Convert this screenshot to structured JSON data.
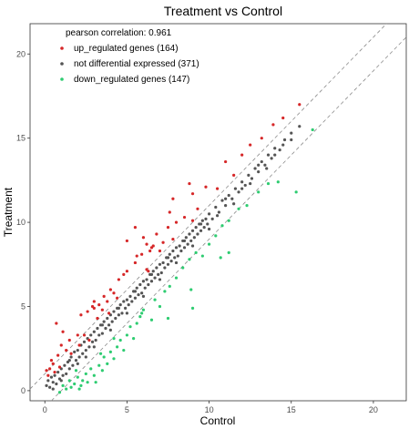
{
  "chart_data": {
    "type": "scatter",
    "title": "Treatment vs Control",
    "xlabel": "Control",
    "ylabel": "Treatment",
    "xlim": [
      -0.9,
      22
    ],
    "ylim": [
      -0.6,
      21.8
    ],
    "xticks": [
      0,
      5,
      10,
      15,
      20
    ],
    "yticks": [
      0,
      5,
      10,
      15,
      20
    ],
    "grid": false,
    "annotation": "pearson correlation: 0.961",
    "reference_lines": [
      {
        "intercept": 1,
        "slope": 1,
        "style": "dashed"
      },
      {
        "intercept": -1,
        "slope": 1,
        "style": "dashed"
      }
    ],
    "legend_position": "top-left",
    "series": [
      {
        "name": "up_regulated genes (164)",
        "color": "#d62728",
        "points": [
          [
            0.1,
            1.2
          ],
          [
            0.2,
            0.9
          ],
          [
            0.3,
            1.3
          ],
          [
            0.5,
            1.6
          ],
          [
            0.6,
            1.1
          ],
          [
            0.8,
            2.1
          ],
          [
            0.7,
            4.0
          ],
          [
            1.1,
            3.5
          ],
          [
            1.3,
            2.4
          ],
          [
            1.5,
            3.0
          ],
          [
            1.6,
            2.2
          ],
          [
            2.0,
            3.3
          ],
          [
            2.1,
            2.7
          ],
          [
            2.2,
            4.5
          ],
          [
            2.4,
            3.3
          ],
          [
            2.6,
            4.7
          ],
          [
            2.7,
            3.0
          ],
          [
            2.9,
            5.0
          ],
          [
            3.0,
            5.3
          ],
          [
            3.2,
            4.3
          ],
          [
            3.3,
            5.1
          ],
          [
            3.5,
            4.8
          ],
          [
            3.6,
            5.6
          ],
          [
            3.8,
            5.3
          ],
          [
            3.9,
            4.6
          ],
          [
            4.0,
            6.0
          ],
          [
            4.2,
            5.8
          ],
          [
            4.4,
            5.5
          ],
          [
            4.5,
            6.6
          ],
          [
            4.8,
            6.9
          ],
          [
            5.0,
            7.1
          ],
          [
            5.5,
            7.6
          ],
          [
            5.6,
            8.0
          ],
          [
            5.9,
            8.1
          ],
          [
            6.2,
            8.7
          ],
          [
            6.3,
            7.1
          ],
          [
            6.5,
            8.5
          ],
          [
            6.6,
            8.6
          ],
          [
            6.8,
            9.3
          ],
          [
            7.0,
            8.3
          ],
          [
            7.5,
            9.7
          ],
          [
            7.8,
            9.0
          ],
          [
            8.0,
            10.0
          ],
          [
            8.5,
            10.3
          ],
          [
            9.0,
            10.1
          ],
          [
            9.3,
            10.8
          ],
          [
            9.8,
            12.1
          ],
          [
            8.8,
            12.3
          ],
          [
            10.5,
            12.0
          ],
          [
            11.0,
            13.6
          ],
          [
            11.5,
            12.8
          ],
          [
            12.0,
            14.0
          ],
          [
            12.5,
            14.6
          ],
          [
            13.2,
            15.0
          ],
          [
            13.9,
            15.8
          ],
          [
            14.5,
            16.2
          ],
          [
            15.5,
            17.0
          ],
          [
            5.5,
            9.7
          ],
          [
            5.0,
            8.9
          ],
          [
            6.0,
            9.1
          ],
          [
            7.8,
            11.4
          ],
          [
            9.0,
            11.7
          ],
          [
            6.2,
            7.2
          ],
          [
            7.2,
            8.8
          ],
          [
            7.6,
            10.6
          ],
          [
            6.4,
            8.3
          ],
          [
            3.0,
            4.9
          ],
          [
            1.0,
            2.7
          ],
          [
            0.4,
            1.8
          ],
          [
            0.9,
            1.4
          ]
        ]
      },
      {
        "name": "not differential expressed (371)",
        "color": "#555555",
        "points": [
          [
            0.1,
            0.3
          ],
          [
            0.2,
            0.6
          ],
          [
            0.3,
            0.2
          ],
          [
            0.4,
            0.8
          ],
          [
            0.5,
            0.5
          ],
          [
            0.6,
            0.9
          ],
          [
            0.7,
            0.4
          ],
          [
            0.8,
            1.1
          ],
          [
            0.9,
            0.7
          ],
          [
            1.0,
            1.3
          ],
          [
            1.1,
            0.9
          ],
          [
            1.2,
            1.5
          ],
          [
            1.3,
            1.0
          ],
          [
            1.4,
            1.7
          ],
          [
            1.5,
            1.3
          ],
          [
            1.6,
            2.0
          ],
          [
            1.7,
            1.5
          ],
          [
            1.8,
            2.3
          ],
          [
            1.9,
            1.8
          ],
          [
            2.0,
            2.4
          ],
          [
            2.1,
            2.0
          ],
          [
            2.2,
            2.7
          ],
          [
            2.3,
            2.2
          ],
          [
            2.4,
            2.9
          ],
          [
            2.5,
            2.4
          ],
          [
            2.6,
            3.1
          ],
          [
            2.7,
            2.6
          ],
          [
            2.8,
            3.3
          ],
          [
            2.9,
            2.9
          ],
          [
            3.0,
            3.5
          ],
          [
            3.1,
            3.0
          ],
          [
            3.2,
            3.7
          ],
          [
            3.3,
            3.3
          ],
          [
            3.4,
            3.9
          ],
          [
            3.5,
            3.4
          ],
          [
            3.6,
            4.1
          ],
          [
            3.7,
            3.7
          ],
          [
            3.8,
            4.3
          ],
          [
            3.9,
            3.9
          ],
          [
            4.0,
            4.5
          ],
          [
            4.1,
            4.1
          ],
          [
            4.2,
            4.7
          ],
          [
            4.3,
            4.3
          ],
          [
            4.4,
            4.9
          ],
          [
            4.5,
            4.5
          ],
          [
            4.6,
            5.1
          ],
          [
            4.7,
            4.6
          ],
          [
            4.8,
            5.3
          ],
          [
            4.9,
            4.9
          ],
          [
            5.0,
            5.4
          ],
          [
            5.1,
            5.1
          ],
          [
            5.2,
            5.6
          ],
          [
            5.3,
            5.3
          ],
          [
            5.4,
            5.9
          ],
          [
            5.5,
            5.5
          ],
          [
            5.6,
            6.1
          ],
          [
            5.7,
            5.7
          ],
          [
            5.8,
            6.3
          ],
          [
            5.9,
            5.8
          ],
          [
            6.0,
            6.5
          ],
          [
            6.1,
            6.1
          ],
          [
            6.2,
            6.6
          ],
          [
            6.3,
            6.3
          ],
          [
            6.4,
            6.9
          ],
          [
            6.5,
            6.5
          ],
          [
            6.6,
            7.1
          ],
          [
            6.7,
            6.7
          ],
          [
            6.8,
            7.3
          ],
          [
            6.9,
            6.9
          ],
          [
            7.0,
            7.5
          ],
          [
            7.1,
            7.0
          ],
          [
            7.2,
            7.6
          ],
          [
            7.3,
            7.3
          ],
          [
            7.4,
            7.9
          ],
          [
            7.5,
            7.5
          ],
          [
            7.6,
            8.1
          ],
          [
            7.7,
            7.7
          ],
          [
            7.8,
            8.3
          ],
          [
            7.9,
            7.9
          ],
          [
            8.0,
            8.5
          ],
          [
            8.1,
            8.0
          ],
          [
            8.2,
            8.6
          ],
          [
            8.3,
            8.3
          ],
          [
            8.4,
            8.9
          ],
          [
            8.5,
            8.5
          ],
          [
            8.6,
            9.1
          ],
          [
            8.7,
            8.7
          ],
          [
            8.8,
            9.3
          ],
          [
            8.9,
            8.9
          ],
          [
            9.0,
            9.5
          ],
          [
            9.1,
            9.1
          ],
          [
            9.2,
            9.7
          ],
          [
            9.3,
            9.3
          ],
          [
            9.4,
            9.9
          ],
          [
            9.5,
            9.5
          ],
          [
            9.6,
            10.1
          ],
          [
            9.7,
            9.7
          ],
          [
            9.8,
            10.2
          ],
          [
            9.9,
            9.9
          ],
          [
            10.0,
            10.5
          ],
          [
            10.2,
            10.2
          ],
          [
            10.4,
            10.9
          ],
          [
            10.6,
            10.6
          ],
          [
            10.8,
            11.3
          ],
          [
            11.0,
            11.0
          ],
          [
            11.2,
            11.6
          ],
          [
            11.4,
            11.4
          ],
          [
            11.6,
            12.0
          ],
          [
            11.8,
            11.8
          ],
          [
            12.0,
            12.4
          ],
          [
            12.2,
            12.2
          ],
          [
            12.4,
            12.8
          ],
          [
            12.6,
            12.6
          ],
          [
            12.8,
            13.2
          ],
          [
            13.0,
            13.0
          ],
          [
            13.2,
            13.6
          ],
          [
            13.4,
            13.4
          ],
          [
            13.6,
            14.0
          ],
          [
            13.8,
            13.8
          ],
          [
            14.0,
            14.4
          ],
          [
            14.3,
            14.3
          ],
          [
            14.6,
            14.9
          ],
          [
            15.0,
            15.3
          ],
          [
            15.5,
            15.7
          ],
          [
            0.5,
            0.1
          ],
          [
            1.0,
            0.6
          ],
          [
            1.5,
            1.8
          ],
          [
            2.0,
            1.6
          ],
          [
            2.5,
            2.0
          ],
          [
            3.0,
            2.6
          ],
          [
            3.5,
            3.9
          ],
          [
            4.0,
            3.6
          ],
          [
            4.5,
            4.9
          ],
          [
            5.0,
            4.6
          ],
          [
            5.5,
            5.9
          ],
          [
            6.0,
            5.6
          ],
          [
            6.5,
            6.9
          ],
          [
            7.0,
            6.6
          ],
          [
            7.5,
            7.9
          ],
          [
            8.0,
            7.6
          ],
          [
            8.5,
            8.9
          ],
          [
            9.0,
            8.6
          ],
          [
            9.5,
            9.9
          ],
          [
            10.0,
            9.6
          ],
          [
            10.5,
            10.4
          ],
          [
            11.0,
            11.4
          ],
          [
            11.5,
            11.1
          ],
          [
            12.0,
            12.0
          ],
          [
            12.5,
            12.3
          ],
          [
            13.0,
            13.4
          ],
          [
            13.5,
            13.2
          ],
          [
            14.0,
            14.0
          ],
          [
            14.5,
            14.6
          ],
          [
            15.0,
            14.9
          ]
        ]
      },
      {
        "name": "down_regulated genes (147)",
        "color": "#2ecc71",
        "points": [
          [
            0.9,
            -0.1
          ],
          [
            1.1,
            0.3
          ],
          [
            1.3,
            0.1
          ],
          [
            1.5,
            0.6
          ],
          [
            1.6,
            0.2
          ],
          [
            1.8,
            0.4
          ],
          [
            2.0,
            0.8
          ],
          [
            2.2,
            0.3
          ],
          [
            2.3,
            0.6
          ],
          [
            2.5,
            1.0
          ],
          [
            2.6,
            0.5
          ],
          [
            2.8,
            1.3
          ],
          [
            3.0,
            0.9
          ],
          [
            3.1,
            0.5
          ],
          [
            3.3,
            1.5
          ],
          [
            3.5,
            1.2
          ],
          [
            3.6,
            2.0
          ],
          [
            3.8,
            1.6
          ],
          [
            4.0,
            2.3
          ],
          [
            4.2,
            1.9
          ],
          [
            4.4,
            2.6
          ],
          [
            4.6,
            3.0
          ],
          [
            4.8,
            2.4
          ],
          [
            5.0,
            3.3
          ],
          [
            5.2,
            3.8
          ],
          [
            5.4,
            3.1
          ],
          [
            5.6,
            4.0
          ],
          [
            5.8,
            4.4
          ],
          [
            6.0,
            4.8
          ],
          [
            6.5,
            4.2
          ],
          [
            6.7,
            5.4
          ],
          [
            7.0,
            5.0
          ],
          [
            7.3,
            5.9
          ],
          [
            7.6,
            6.2
          ],
          [
            8.0,
            6.7
          ],
          [
            8.4,
            7.3
          ],
          [
            8.8,
            7.8
          ],
          [
            9.2,
            8.2
          ],
          [
            9.6,
            8.0
          ],
          [
            10.0,
            8.7
          ],
          [
            10.4,
            9.2
          ],
          [
            10.8,
            9.8
          ],
          [
            11.2,
            10.1
          ],
          [
            11.8,
            10.8
          ],
          [
            12.3,
            11.0
          ],
          [
            13.0,
            11.8
          ],
          [
            13.6,
            12.3
          ],
          [
            14.2,
            12.4
          ],
          [
            15.3,
            11.8
          ],
          [
            16.3,
            15.5
          ],
          [
            11.2,
            8.2
          ],
          [
            8.9,
            6.0
          ],
          [
            7.5,
            4.3
          ],
          [
            4.2,
            3.1
          ],
          [
            2.1,
            0.1
          ],
          [
            3.4,
            2.2
          ],
          [
            5.9,
            4.6
          ],
          [
            10.7,
            7.9
          ],
          [
            9.0,
            4.9
          ],
          [
            1.9,
            1.2
          ]
        ]
      }
    ]
  }
}
